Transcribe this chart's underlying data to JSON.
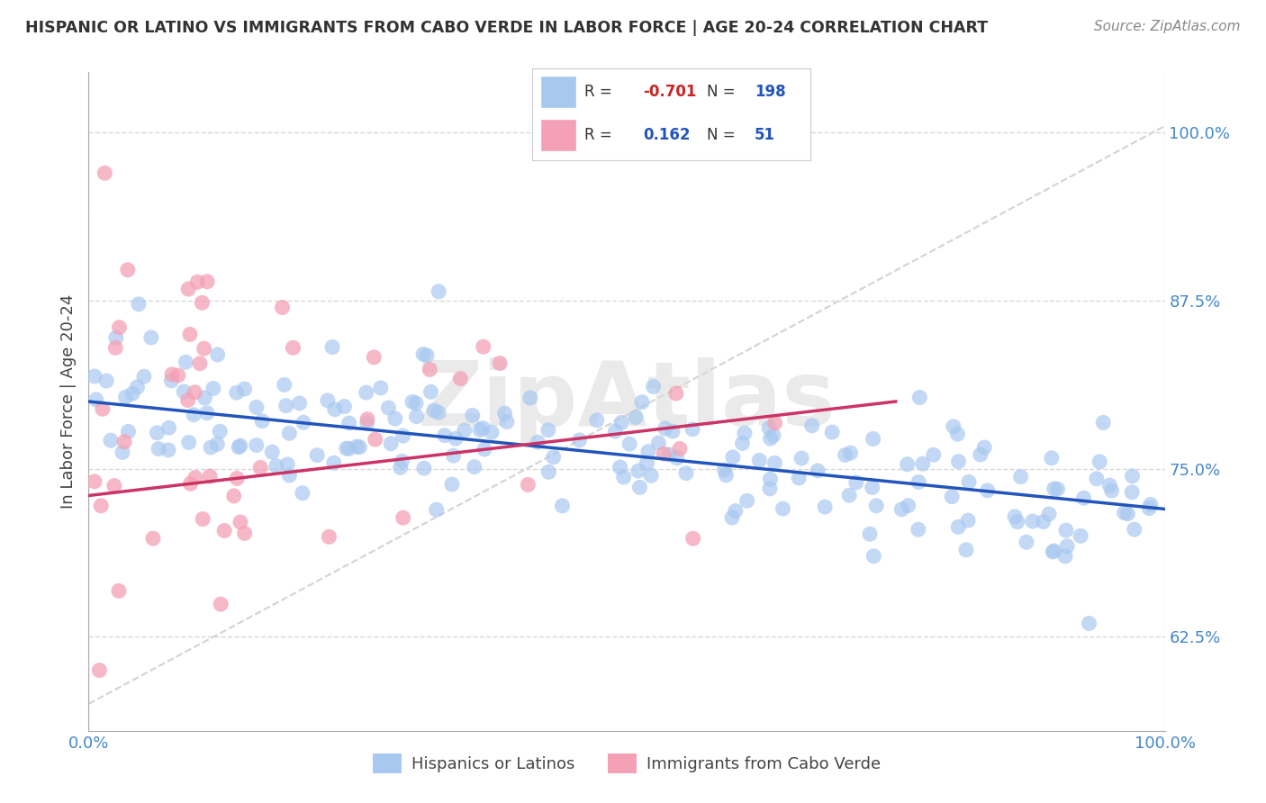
{
  "title": "HISPANIC OR LATINO VS IMMIGRANTS FROM CABO VERDE IN LABOR FORCE | AGE 20-24 CORRELATION CHART",
  "source": "Source: ZipAtlas.com",
  "ylabel": "In Labor Force | Age 20-24",
  "y_ticks_labels": [
    "62.5%",
    "75.0%",
    "87.5%",
    "100.0%"
  ],
  "y_tick_vals": [
    0.625,
    0.75,
    0.875,
    1.0
  ],
  "x_lim": [
    0.0,
    1.0
  ],
  "y_lim": [
    0.555,
    1.045
  ],
  "blue_color": "#a8c8f0",
  "pink_color": "#f4a0b5",
  "blue_line_color": "#2255bb",
  "pink_line_color": "#cc3366",
  "diag_line_color": "#c8c8c8",
  "legend_R1": "-0.701",
  "legend_N1": "198",
  "legend_R2": "0.162",
  "legend_N2": "51",
  "legend_label1": "Hispanics or Latinos",
  "legend_label2": "Immigrants from Cabo Verde",
  "blue_R": -0.701,
  "blue_N": 198,
  "pink_R": 0.162,
  "pink_N": 51,
  "blue_line_x0": 0.0,
  "blue_line_x1": 1.0,
  "blue_line_y0": 0.8,
  "blue_line_y1": 0.72,
  "pink_line_x0": 0.0,
  "pink_line_x1": 0.75,
  "pink_line_y0": 0.73,
  "pink_line_y1": 0.8,
  "watermark": "ZipAtlas",
  "watermark_color": "#dddddd",
  "tick_color": "#4488cc",
  "grid_color": "#d8d8d8",
  "title_color": "#333333",
  "source_color": "#888888"
}
